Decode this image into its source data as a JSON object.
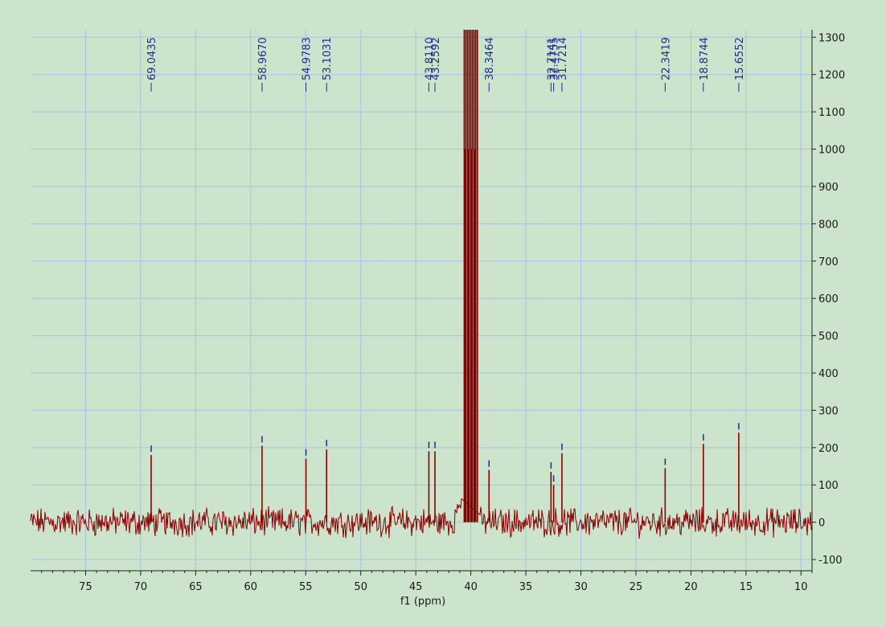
{
  "chart_data": {
    "type": "line",
    "xlabel": "f1 (ppm)",
    "ylabel": "",
    "xlim": [
      80,
      9
    ],
    "ylim": [
      -130,
      1320
    ],
    "x_axis_reversed": true,
    "y_axis_position": "right",
    "grid": true,
    "x_ticks": [
      75,
      70,
      65,
      60,
      55,
      50,
      45,
      40,
      35,
      30,
      25,
      20,
      15,
      10
    ],
    "y_ticks": [
      -100,
      0,
      100,
      200,
      300,
      400,
      500,
      600,
      700,
      800,
      900,
      1000,
      1100,
      1200,
      1300
    ],
    "colors": {
      "spectrum": "#8b0000",
      "peak_marker": "#1f2d8a",
      "grid": "#a9c3e0",
      "background": "#cce3cc"
    },
    "solvent_region": [
      39.2,
      40.8
    ],
    "series": [
      {
        "peaks": [
          {
            "ppm": 69.0435,
            "height": 180,
            "label": "69.0435"
          },
          {
            "ppm": 58.967,
            "height": 205,
            "label": "58.9670"
          },
          {
            "ppm": 54.9783,
            "height": 170,
            "label": "54.9783"
          },
          {
            "ppm": 53.1031,
            "height": 195,
            "label": "53.1031"
          },
          {
            "ppm": 43.811,
            "height": 190,
            "label": "43.8110"
          },
          {
            "ppm": 43.2592,
            "height": 190,
            "label": "43.2592"
          },
          {
            "ppm": 38.3464,
            "height": 140,
            "label": "38.3464"
          },
          {
            "ppm": 32.7141,
            "height": 135,
            "label": "32.7141"
          },
          {
            "ppm": 32.4755,
            "height": 100,
            "label": "32.4755"
          },
          {
            "ppm": 31.7214,
            "height": 185,
            "label": "31.7214"
          },
          {
            "ppm": 22.3419,
            "height": 145,
            "label": "22.3419"
          },
          {
            "ppm": 18.8744,
            "height": 210,
            "label": "18.8744"
          },
          {
            "ppm": 15.6552,
            "height": 240,
            "label": "15.6552"
          }
        ]
      }
    ]
  }
}
